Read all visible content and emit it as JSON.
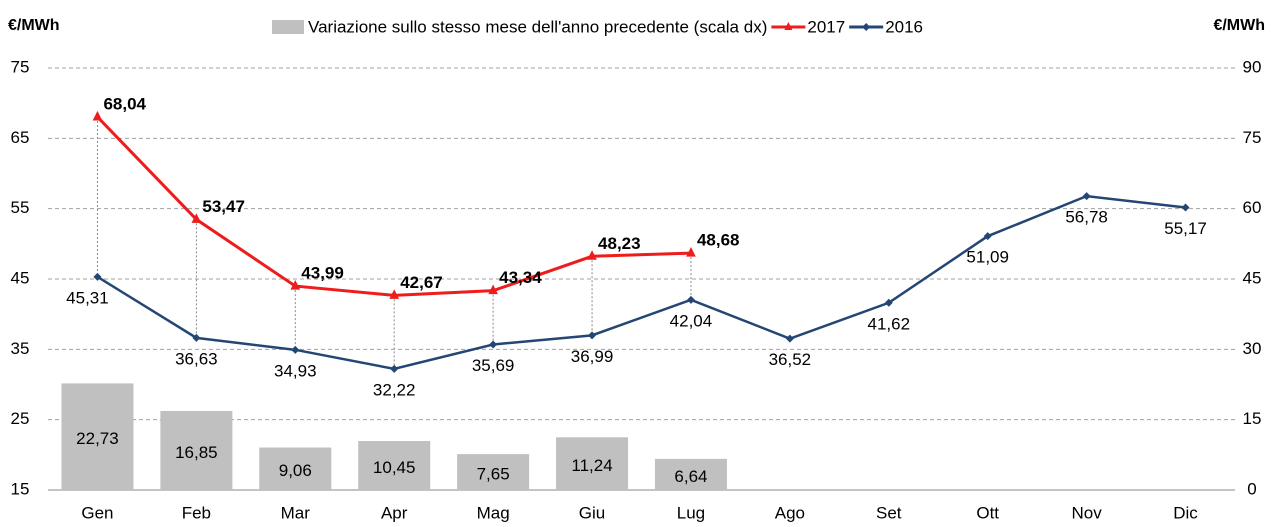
{
  "chart_data": {
    "type": "bar-line",
    "ylabel": "€/MWh",
    "y2label": "€/MWh",
    "categories": [
      "Gen",
      "Feb",
      "Mar",
      "Apr",
      "Mag",
      "Giu",
      "Lug",
      "Ago",
      "Set",
      "Ott",
      "Nov",
      "Dic"
    ],
    "ylim": [
      15,
      75
    ],
    "yticks": [
      15,
      25,
      35,
      45,
      55,
      65,
      75
    ],
    "y2lim": [
      0,
      90
    ],
    "y2ticks": [
      0,
      15,
      30,
      45,
      60,
      75,
      90
    ],
    "grid": true,
    "series": [
      {
        "name": "Variazione sullo stesso mese dell'anno precedente (scala dx)",
        "type": "bar",
        "axis": "y2",
        "color": "#c0c0c0",
        "values": [
          22.73,
          16.85,
          9.06,
          10.45,
          7.65,
          11.24,
          6.64,
          null,
          null,
          null,
          null,
          null
        ],
        "value_labels": [
          "22,73",
          "16,85",
          "9,06",
          "10,45",
          "7,65",
          "11,24",
          "6,64",
          null,
          null,
          null,
          null,
          null
        ]
      },
      {
        "name": "2017",
        "type": "line",
        "color": "#ee1c1c",
        "marker": "triangle",
        "values": [
          68.04,
          53.47,
          43.99,
          42.67,
          43.34,
          48.23,
          48.68,
          null,
          null,
          null,
          null,
          null
        ],
        "value_labels": [
          "68,04",
          "53,47",
          "43,99",
          "42,67",
          "43,34",
          "48,23",
          "48,68",
          null,
          null,
          null,
          null,
          null
        ]
      },
      {
        "name": "2016",
        "type": "line",
        "color": "#234674",
        "label_color": "#1c1cdc",
        "marker": "diamond",
        "values": [
          45.31,
          36.63,
          34.93,
          32.22,
          35.69,
          36.99,
          42.04,
          36.52,
          41.62,
          51.09,
          56.78,
          55.17
        ],
        "value_labels": [
          "45,31",
          "36,63",
          "34,93",
          "32,22",
          "35,69",
          "36,99",
          "42,04",
          "36,52",
          "41,62",
          "51,09",
          "56,78",
          "55,17"
        ]
      }
    ]
  }
}
